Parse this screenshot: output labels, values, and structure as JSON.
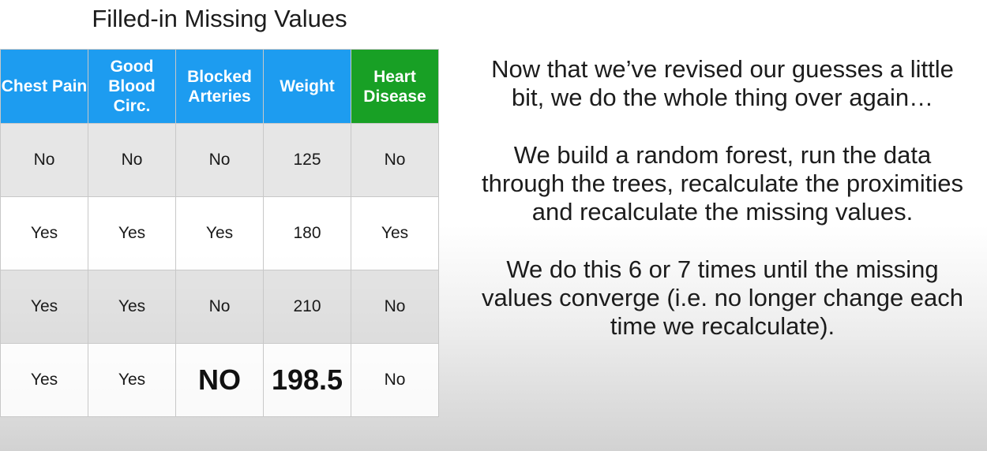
{
  "title": "Filled-in Missing Values",
  "table": {
    "headers": [
      {
        "label": "Chest Pain",
        "target": false
      },
      {
        "label": "Good Blood Circ.",
        "target": false
      },
      {
        "label": "Blocked Arteries",
        "target": false
      },
      {
        "label": "Weight",
        "target": false
      },
      {
        "label": "Heart Disease",
        "target": true
      }
    ],
    "header_color": "#1d9cf0",
    "target_header_color": "#18a025",
    "rows": [
      [
        "No",
        "No",
        "No",
        "125",
        "No"
      ],
      [
        "Yes",
        "Yes",
        "Yes",
        "180",
        "Yes"
      ],
      [
        "Yes",
        "Yes",
        "No",
        "210",
        "No"
      ],
      [
        "Yes",
        "Yes",
        "NO",
        "198.5",
        "No"
      ]
    ],
    "emphasized_cells": [
      [
        3,
        2
      ],
      [
        3,
        3
      ]
    ]
  },
  "narration": [
    "Now that we’ve revised our guesses a little bit, we do the whole thing over again…",
    "We build a random forest, run the data through the trees, recalculate the proximities and recalculate the missing values.",
    "We do this 6 or 7 times until the missing values converge (i.e. no longer change each time we recalculate)."
  ]
}
